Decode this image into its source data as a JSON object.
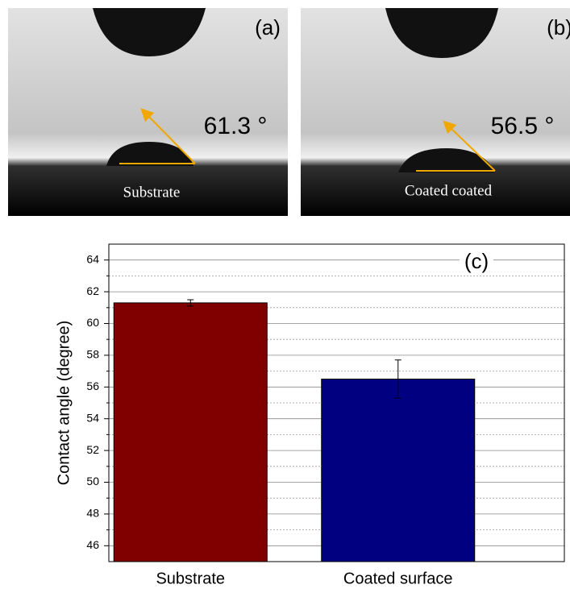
{
  "photos": [
    {
      "label": "(a)",
      "angle": "61.3 °",
      "caption": "Substrate"
    },
    {
      "label": "(b)",
      "angle": "56.5 °",
      "caption": "Coated coated"
    }
  ],
  "chart_data": {
    "type": "bar",
    "label": "(c)",
    "ylabel": "Contact angle (degree)",
    "categories": [
      "Substrate",
      "Coated surface"
    ],
    "values": [
      61.3,
      56.5
    ],
    "errors": [
      0.2,
      1.2
    ],
    "colors": [
      "#800000",
      "#000080"
    ],
    "ylim": [
      45,
      65
    ],
    "yticks": [
      46,
      48,
      50,
      52,
      54,
      56,
      58,
      60,
      62,
      64
    ],
    "minor_yticks": [
      47,
      49,
      51,
      53,
      55,
      57,
      59,
      61,
      63
    ],
    "grid": true
  }
}
